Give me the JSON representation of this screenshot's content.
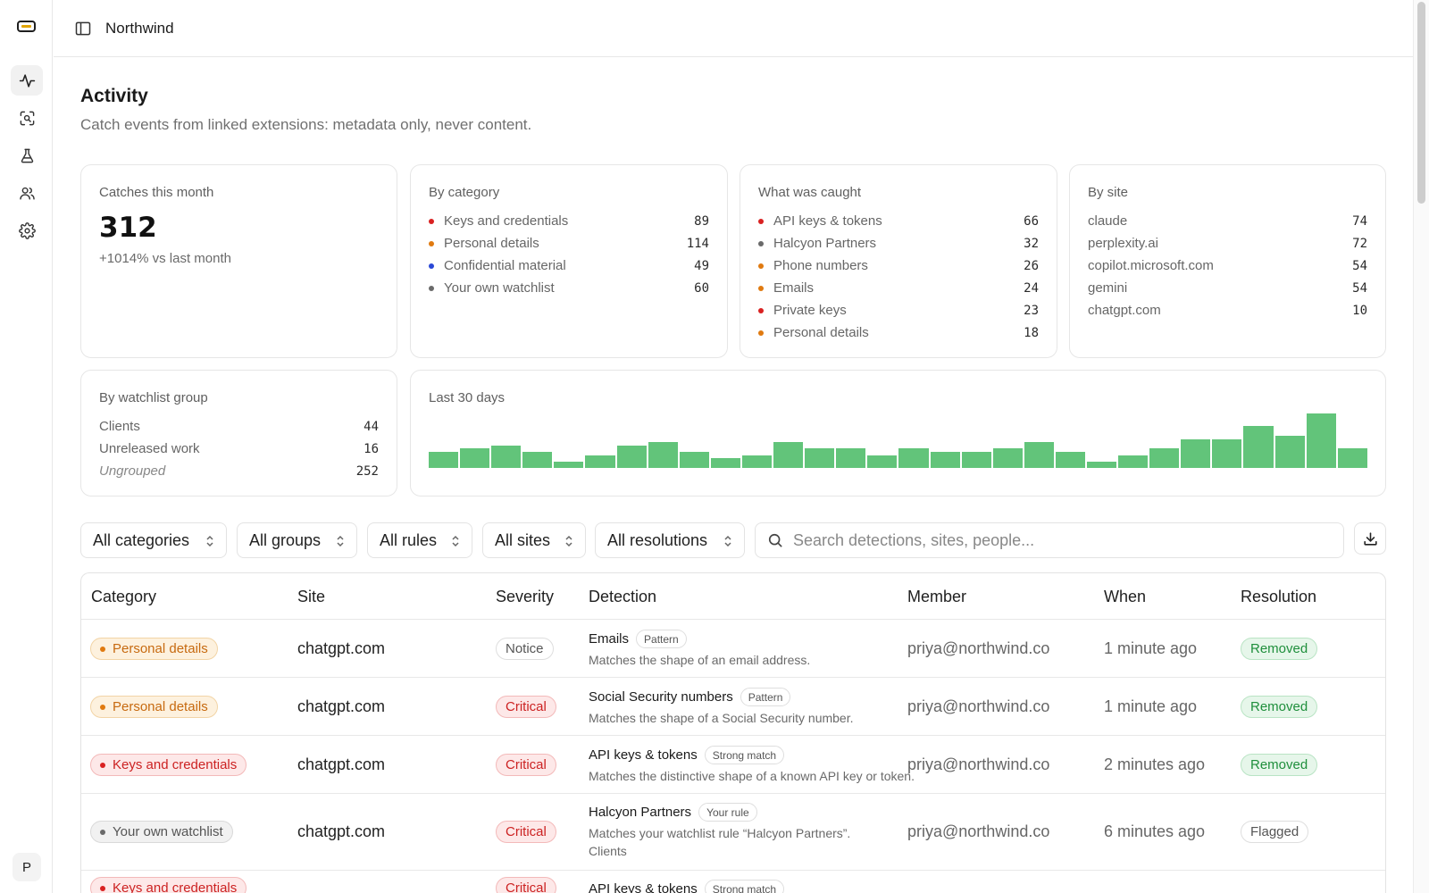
{
  "app": {
    "brand": "Northwind",
    "user_initial": "P"
  },
  "rail": {
    "items": [
      {
        "icon": "activity-icon",
        "active": true
      },
      {
        "icon": "scan-icon",
        "active": false
      },
      {
        "icon": "flask-icon",
        "active": false
      },
      {
        "icon": "users-icon",
        "active": false
      },
      {
        "icon": "gear-icon",
        "active": false
      }
    ]
  },
  "page": {
    "title": "Activity",
    "subtitle": "Catch events from linked extensions: metadata only, never content."
  },
  "summary": {
    "title": "Catches this month",
    "value": "312",
    "delta": "+1014% vs last month"
  },
  "by_category": {
    "title": "By category",
    "items": [
      {
        "label": "Keys and credentials",
        "value": "89",
        "color": "#d92121"
      },
      {
        "label": "Personal details",
        "value": "114",
        "color": "#e07a10"
      },
      {
        "label": "Confidential material",
        "value": "49",
        "color": "#2a48d6"
      },
      {
        "label": "Your own watchlist",
        "value": "60",
        "color": "#6a6a6a"
      }
    ]
  },
  "what_caught": {
    "title": "What was caught",
    "items": [
      {
        "label": "API keys & tokens",
        "value": "66",
        "color": "#d92121"
      },
      {
        "label": "Halcyon Partners",
        "value": "32",
        "color": "#6a6a6a"
      },
      {
        "label": "Phone numbers",
        "value": "26",
        "color": "#e07a10"
      },
      {
        "label": "Emails",
        "value": "24",
        "color": "#e07a10"
      },
      {
        "label": "Private keys",
        "value": "23",
        "color": "#d92121"
      },
      {
        "label": "Personal details",
        "value": "18",
        "color": "#e07a10"
      }
    ]
  },
  "by_site": {
    "title": "By site",
    "items": [
      {
        "label": "claude",
        "value": "74"
      },
      {
        "label": "perplexity.ai",
        "value": "72"
      },
      {
        "label": "copilot.microsoft.com",
        "value": "54"
      },
      {
        "label": "gemini",
        "value": "54"
      },
      {
        "label": "chatgpt.com",
        "value": "10"
      }
    ]
  },
  "by_group": {
    "title": "By watchlist group",
    "items": [
      {
        "label": "Clients",
        "value": "44"
      },
      {
        "label": "Unreleased work",
        "value": "16"
      },
      {
        "label": "Ungrouped",
        "value": "252"
      }
    ]
  },
  "chart_data": {
    "type": "bar",
    "title": "Last 30 days",
    "values": [
      5,
      6,
      7,
      5,
      2,
      4,
      7,
      8,
      5,
      3,
      4,
      8,
      6,
      6,
      4,
      6,
      5,
      5,
      6,
      8,
      5,
      2,
      4,
      6,
      9,
      9,
      13,
      10,
      17,
      6
    ],
    "color": "#62c47a",
    "ylim": [
      0,
      17
    ]
  },
  "filters": {
    "categories": "All categories",
    "groups": "All groups",
    "rules": "All rules",
    "sites": "All sites",
    "resolutions": "All resolutions",
    "search_placeholder": "Search detections, sites, people..."
  },
  "table": {
    "headers": {
      "category": "Category",
      "site": "Site",
      "severity": "Severity",
      "detection": "Detection",
      "member": "Member",
      "when": "When",
      "resolution": "Resolution"
    },
    "rows": [
      {
        "category": "Personal details",
        "category_color": "orange",
        "site": "chatgpt.com",
        "severity": "Notice",
        "severity_kind": "notice",
        "detection": "Emails",
        "tag": "Pattern",
        "desc": "Matches the shape of an email address.",
        "desc2": "",
        "member": "priya@northwind.co",
        "when": "1 minute ago",
        "resolution": "Removed",
        "resolution_kind": "removed"
      },
      {
        "category": "Personal details",
        "category_color": "orange",
        "site": "chatgpt.com",
        "severity": "Critical",
        "severity_kind": "critical",
        "detection": "Social Security numbers",
        "tag": "Pattern",
        "desc": "Matches the shape of a Social Security number.",
        "desc2": "",
        "member": "priya@northwind.co",
        "when": "1 minute ago",
        "resolution": "Removed",
        "resolution_kind": "removed"
      },
      {
        "category": "Keys and credentials",
        "category_color": "red",
        "site": "chatgpt.com",
        "severity": "Critical",
        "severity_kind": "critical",
        "detection": "API keys & tokens",
        "tag": "Strong match",
        "desc": "Matches the distinctive shape of a known API key or token.",
        "desc2": "",
        "member": "priya@northwind.co",
        "when": "2 minutes ago",
        "resolution": "Removed",
        "resolution_kind": "removed"
      },
      {
        "category": "Your own watchlist",
        "category_color": "gray",
        "site": "chatgpt.com",
        "severity": "Critical",
        "severity_kind": "critical",
        "detection": "Halcyon Partners",
        "tag": "Your rule",
        "desc": "Matches your watchlist rule “Halcyon Partners”.",
        "desc2": "Clients",
        "member": "priya@northwind.co",
        "when": "6 minutes ago",
        "resolution": "Flagged",
        "resolution_kind": "flagged"
      },
      {
        "category": "Keys and credentials",
        "category_color": "red",
        "site": "",
        "severity": "Critical",
        "severity_kind": "critical",
        "detection": "API keys & tokens",
        "tag": "Strong match",
        "desc": "",
        "desc2": "",
        "member": "",
        "when": "",
        "resolution": "",
        "resolution_kind": "removed"
      }
    ]
  }
}
